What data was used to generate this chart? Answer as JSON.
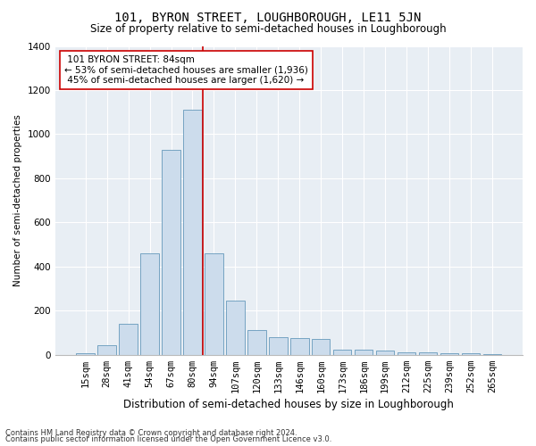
{
  "title": "101, BYRON STREET, LOUGHBOROUGH, LE11 5JN",
  "subtitle": "Size of property relative to semi-detached houses in Loughborough",
  "xlabel": "Distribution of semi-detached houses by size in Loughborough",
  "ylabel": "Number of semi-detached properties",
  "footnote1": "Contains HM Land Registry data © Crown copyright and database right 2024.",
  "footnote2": "Contains public sector information licensed under the Open Government Licence v3.0.",
  "property_label": "101 BYRON STREET: 84sqm",
  "pct_smaller": 53,
  "pct_larger": 45,
  "count_smaller": 1936,
  "count_larger": 1620,
  "bar_color": "#ccdcec",
  "bar_edge_color": "#6699bb",
  "vline_color": "#cc0000",
  "annotation_box_edge": "#cc0000",
  "bg_color": "#e8eef4",
  "categories": [
    "15sqm",
    "28sqm",
    "41sqm",
    "54sqm",
    "67sqm",
    "80sqm",
    "94sqm",
    "107sqm",
    "120sqm",
    "133sqm",
    "146sqm",
    "160sqm",
    "173sqm",
    "186sqm",
    "199sqm",
    "212sqm",
    "225sqm",
    "239sqm",
    "252sqm",
    "265sqm"
  ],
  "values": [
    5,
    45,
    140,
    460,
    930,
    1110,
    460,
    245,
    110,
    80,
    75,
    70,
    25,
    25,
    18,
    12,
    10,
    8,
    5,
    3
  ],
  "ylim": [
    0,
    1400
  ],
  "yticks": [
    0,
    200,
    400,
    600,
    800,
    1000,
    1200,
    1400
  ],
  "vline_x": 5.5,
  "title_fontsize": 10,
  "subtitle_fontsize": 8.5,
  "xlabel_fontsize": 8.5,
  "ylabel_fontsize": 7.5,
  "tick_fontsize": 7.5,
  "annot_fontsize": 7.5,
  "footnote_fontsize": 6.0
}
